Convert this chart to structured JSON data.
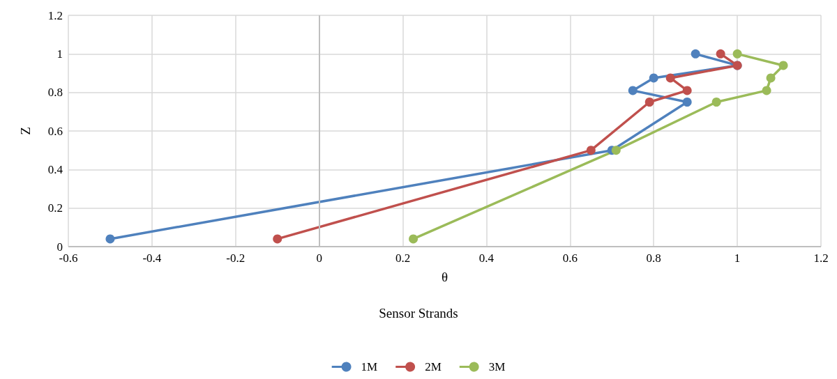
{
  "chart_data": {
    "type": "line",
    "xlabel": "θ",
    "annotations": [
      "Sensor Strands"
    ],
    "ylabel": "Z",
    "series": [
      {
        "name": "1M",
        "color": "#4f81bd",
        "x": [
          0.9,
          1.0,
          0.8,
          0.75,
          0.88,
          0.7,
          -0.5
        ],
        "values": [
          1,
          0.94,
          0.875,
          0.81,
          0.75,
          0.5,
          0.04
        ]
      },
      {
        "name": "2M",
        "color": "#c0504d",
        "x": [
          0.96,
          1.0,
          0.84,
          0.88,
          0.79,
          0.65,
          -0.1
        ],
        "values": [
          1,
          0.94,
          0.875,
          0.81,
          0.75,
          0.5,
          0.04
        ]
      },
      {
        "name": "3M",
        "color": "#9bbb59",
        "x": [
          1.0,
          1.11,
          1.08,
          1.07,
          0.95,
          0.71,
          0.225
        ],
        "values": [
          1,
          0.94,
          0.875,
          0.81,
          0.75,
          0.5,
          0.04
        ]
      }
    ],
    "xlim": [
      -0.6,
      1.2
    ],
    "xticks": [
      -0.6,
      -0.4,
      -0.2,
      0,
      0.2,
      0.4,
      0.6,
      0.8,
      1,
      1.2
    ],
    "ylim": [
      0,
      1.2
    ],
    "yticks": [
      0,
      0.2,
      0.4,
      0.6,
      0.8,
      1,
      1.2
    ],
    "grid": true,
    "legend": "bottom",
    "marker": "circle",
    "line_style": "solid"
  }
}
